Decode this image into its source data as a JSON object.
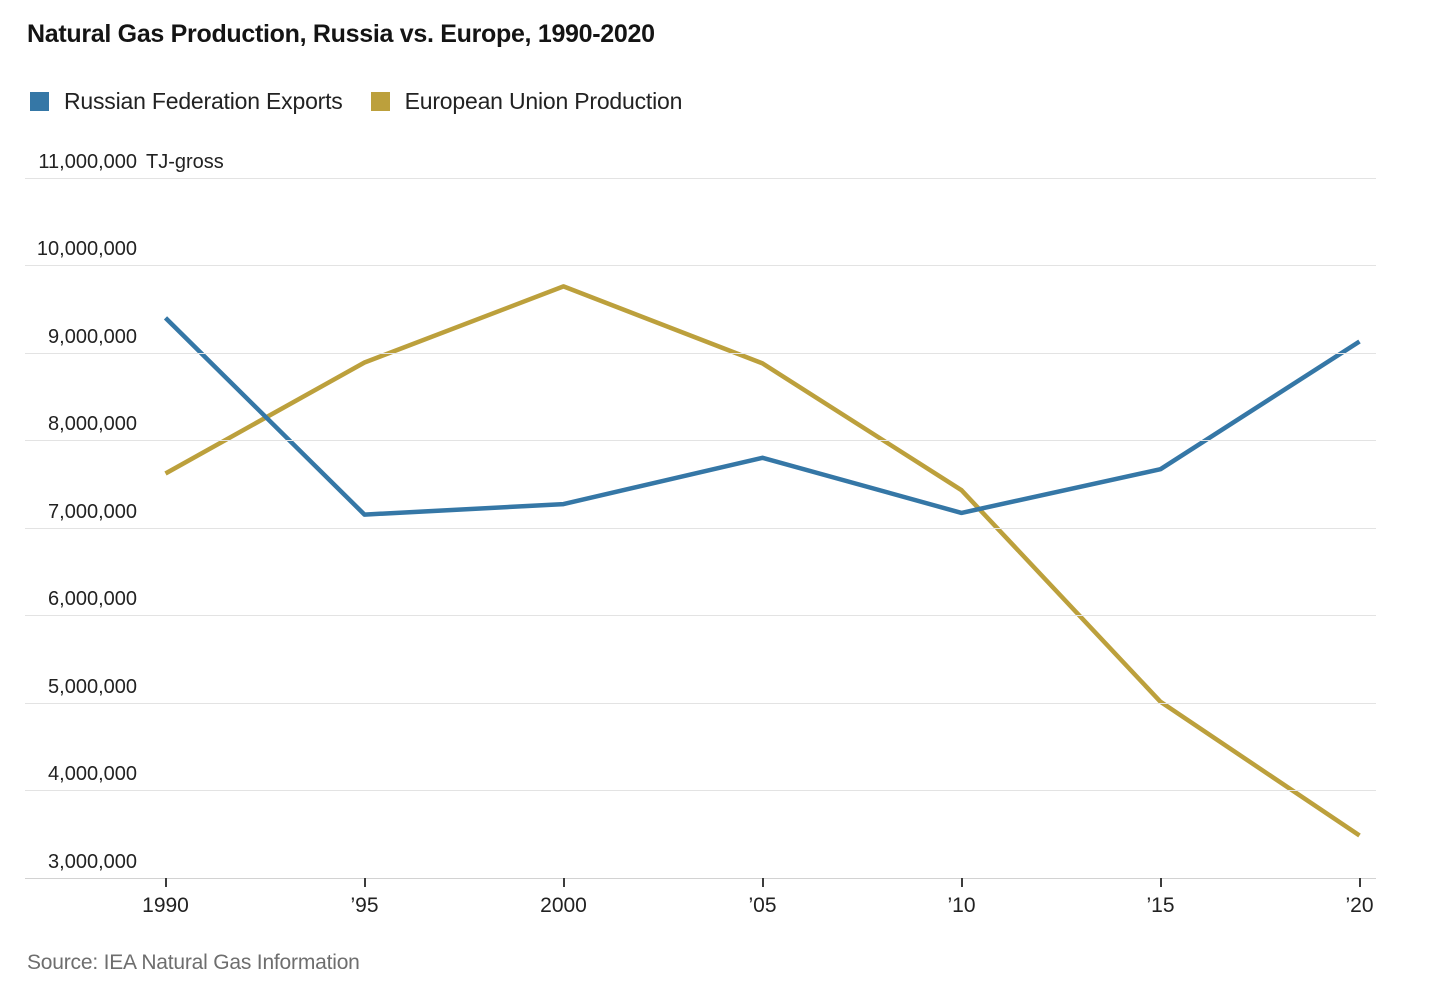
{
  "title": "Natural Gas Production, Russia vs. Europe, 1990-2020",
  "source": "Source: IEA Natural Gas Information",
  "legend": {
    "items": [
      {
        "label": "Russian Federation Exports",
        "color": "#3577a6"
      },
      {
        "label": "European Union Production",
        "color": "#bca03c"
      }
    ]
  },
  "chart_data": {
    "type": "line",
    "title": "Natural Gas Production, Russia vs. Europe, 1990-2020",
    "unit_label": "TJ-gross",
    "x": [
      1990,
      1995,
      2000,
      2005,
      2010,
      2015,
      2020
    ],
    "x_tick_labels": [
      "1990",
      "’95",
      "2000",
      "’05",
      "’10",
      "’15",
      "’20"
    ],
    "y_ticks": [
      3000000,
      4000000,
      5000000,
      6000000,
      7000000,
      8000000,
      9000000,
      10000000,
      11000000
    ],
    "y_tick_labels": [
      "3,000,000",
      "4,000,000",
      "5,000,000",
      "6,000,000",
      "7,000,000",
      "8,000,000",
      "9,000,000",
      "10,000,000",
      "11,000,000"
    ],
    "ylim": [
      3000000,
      11000000
    ],
    "grid": "horizontal",
    "legend_position": "top-left",
    "series": [
      {
        "name": "Russian Federation Exports",
        "color": "#3577a6",
        "values": [
          9400000,
          7150000,
          7270000,
          7800000,
          7170000,
          7670000,
          9130000
        ]
      },
      {
        "name": "European Union Production",
        "color": "#bca03c",
        "values": [
          7620000,
          8890000,
          9760000,
          8880000,
          7430000,
          5010000,
          3480000
        ]
      }
    ]
  }
}
